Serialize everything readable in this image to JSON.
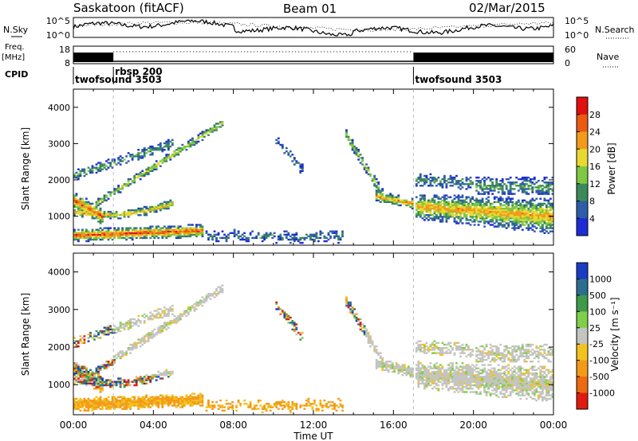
{
  "header": {
    "station": "Saskatoon (fitACF)",
    "beam": "Beam 01",
    "date": "02/Mar/2015"
  },
  "top_panels": {
    "nsky_label": "N.Sky",
    "nsky_ticks": [
      "10^5",
      "10^0"
    ],
    "nsearch_label": "N.Search",
    "nsearch_ticks": [
      "10^5",
      "10^0"
    ],
    "freq_label": "Freq.",
    "freq_unit": "[MHz]",
    "freq_ticks": [
      "18",
      "8"
    ],
    "nave_label": "Nave",
    "nave_ticks": [
      "60",
      "0"
    ],
    "cpid_label": "CPID",
    "cpid_segments": [
      {
        "label": "twofsound 3503",
        "start_hour": 0
      },
      {
        "label": "rbsp 200",
        "start_hour": 2
      },
      {
        "label": "twofsound 3503",
        "start_hour": 17
      }
    ]
  },
  "chart_data": [
    {
      "type": "heatmap",
      "name": "power",
      "ylabel": "Slant Range [km]",
      "yticks": [
        "1000",
        "2000",
        "3000",
        "4000"
      ],
      "ylim": [
        200,
        4500
      ],
      "xlim": [
        0,
        24
      ],
      "colorbar_label": "Power [dB]",
      "colorbar_ticks": [
        "4",
        "8",
        "12",
        "16",
        "20",
        "24",
        "28"
      ],
      "colorbar_range": [
        0,
        32
      ],
      "colors": [
        "#1f2bd6",
        "#2e5da8",
        "#3c8a5a",
        "#7ec843",
        "#e8d930",
        "#f29a1c",
        "#ea5a12",
        "#e01010"
      ]
    },
    {
      "type": "heatmap",
      "name": "velocity",
      "ylabel": "Slant Range [km]",
      "yticks": [
        "1000",
        "2000",
        "3000",
        "4000"
      ],
      "ylim": [
        200,
        4500
      ],
      "xlim": [
        0,
        24
      ],
      "colorbar_label": "Velocity [m s⁻¹]",
      "colorbar_ticks": [
        "1000",
        "500",
        "100",
        "25",
        "-25",
        "-100",
        "-500",
        "-1000"
      ],
      "colors": [
        "#1a3bc4",
        "#2c6e8f",
        "#3c9a4a",
        "#7fcf4a",
        "#c4c4c0",
        "#f2c21e",
        "#f39a1a",
        "#ee6a10",
        "#e01a10"
      ]
    }
  ],
  "x_axis": {
    "ticks": [
      "00:00",
      "04:00",
      "08:00",
      "12:00",
      "16:00",
      "20:00",
      "00:00"
    ],
    "label": "Time UT"
  }
}
